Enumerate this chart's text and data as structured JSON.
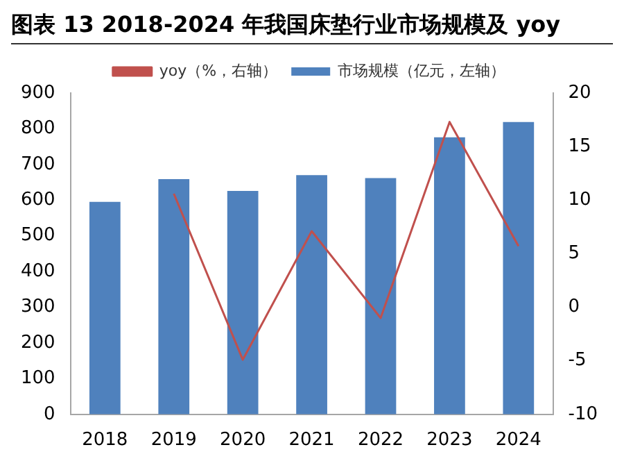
{
  "chart_data": {
    "type": "bar",
    "title": "图表 13 2018-2024 年我国床垫行业市场规模及 yoy",
    "categories": [
      "2018",
      "2019",
      "2020",
      "2021",
      "2022",
      "2023",
      "2024"
    ],
    "series": [
      {
        "name": "市场规模（亿元，左轴）",
        "color": "#4f81bd",
        "values": [
          595,
          659,
          626,
          670,
          662,
          776,
          819
        ]
      },
      {
        "name": "yoy（%，右轴）",
        "type": "line",
        "axis": "y2",
        "color": "#c0504d",
        "values": [
          null,
          10.6,
          -4.9,
          7.1,
          -1.0,
          17.3,
          5.7
        ]
      }
    ],
    "ylim": [
      0,
      900
    ],
    "yticks": [
      0,
      100,
      200,
      300,
      400,
      500,
      600,
      700,
      800,
      900
    ],
    "y2lim": [
      -10,
      20
    ],
    "y2ticks": [
      -10,
      -5,
      0,
      5,
      10,
      15,
      20
    ],
    "grid": false,
    "legend": "top",
    "marker": "none"
  }
}
